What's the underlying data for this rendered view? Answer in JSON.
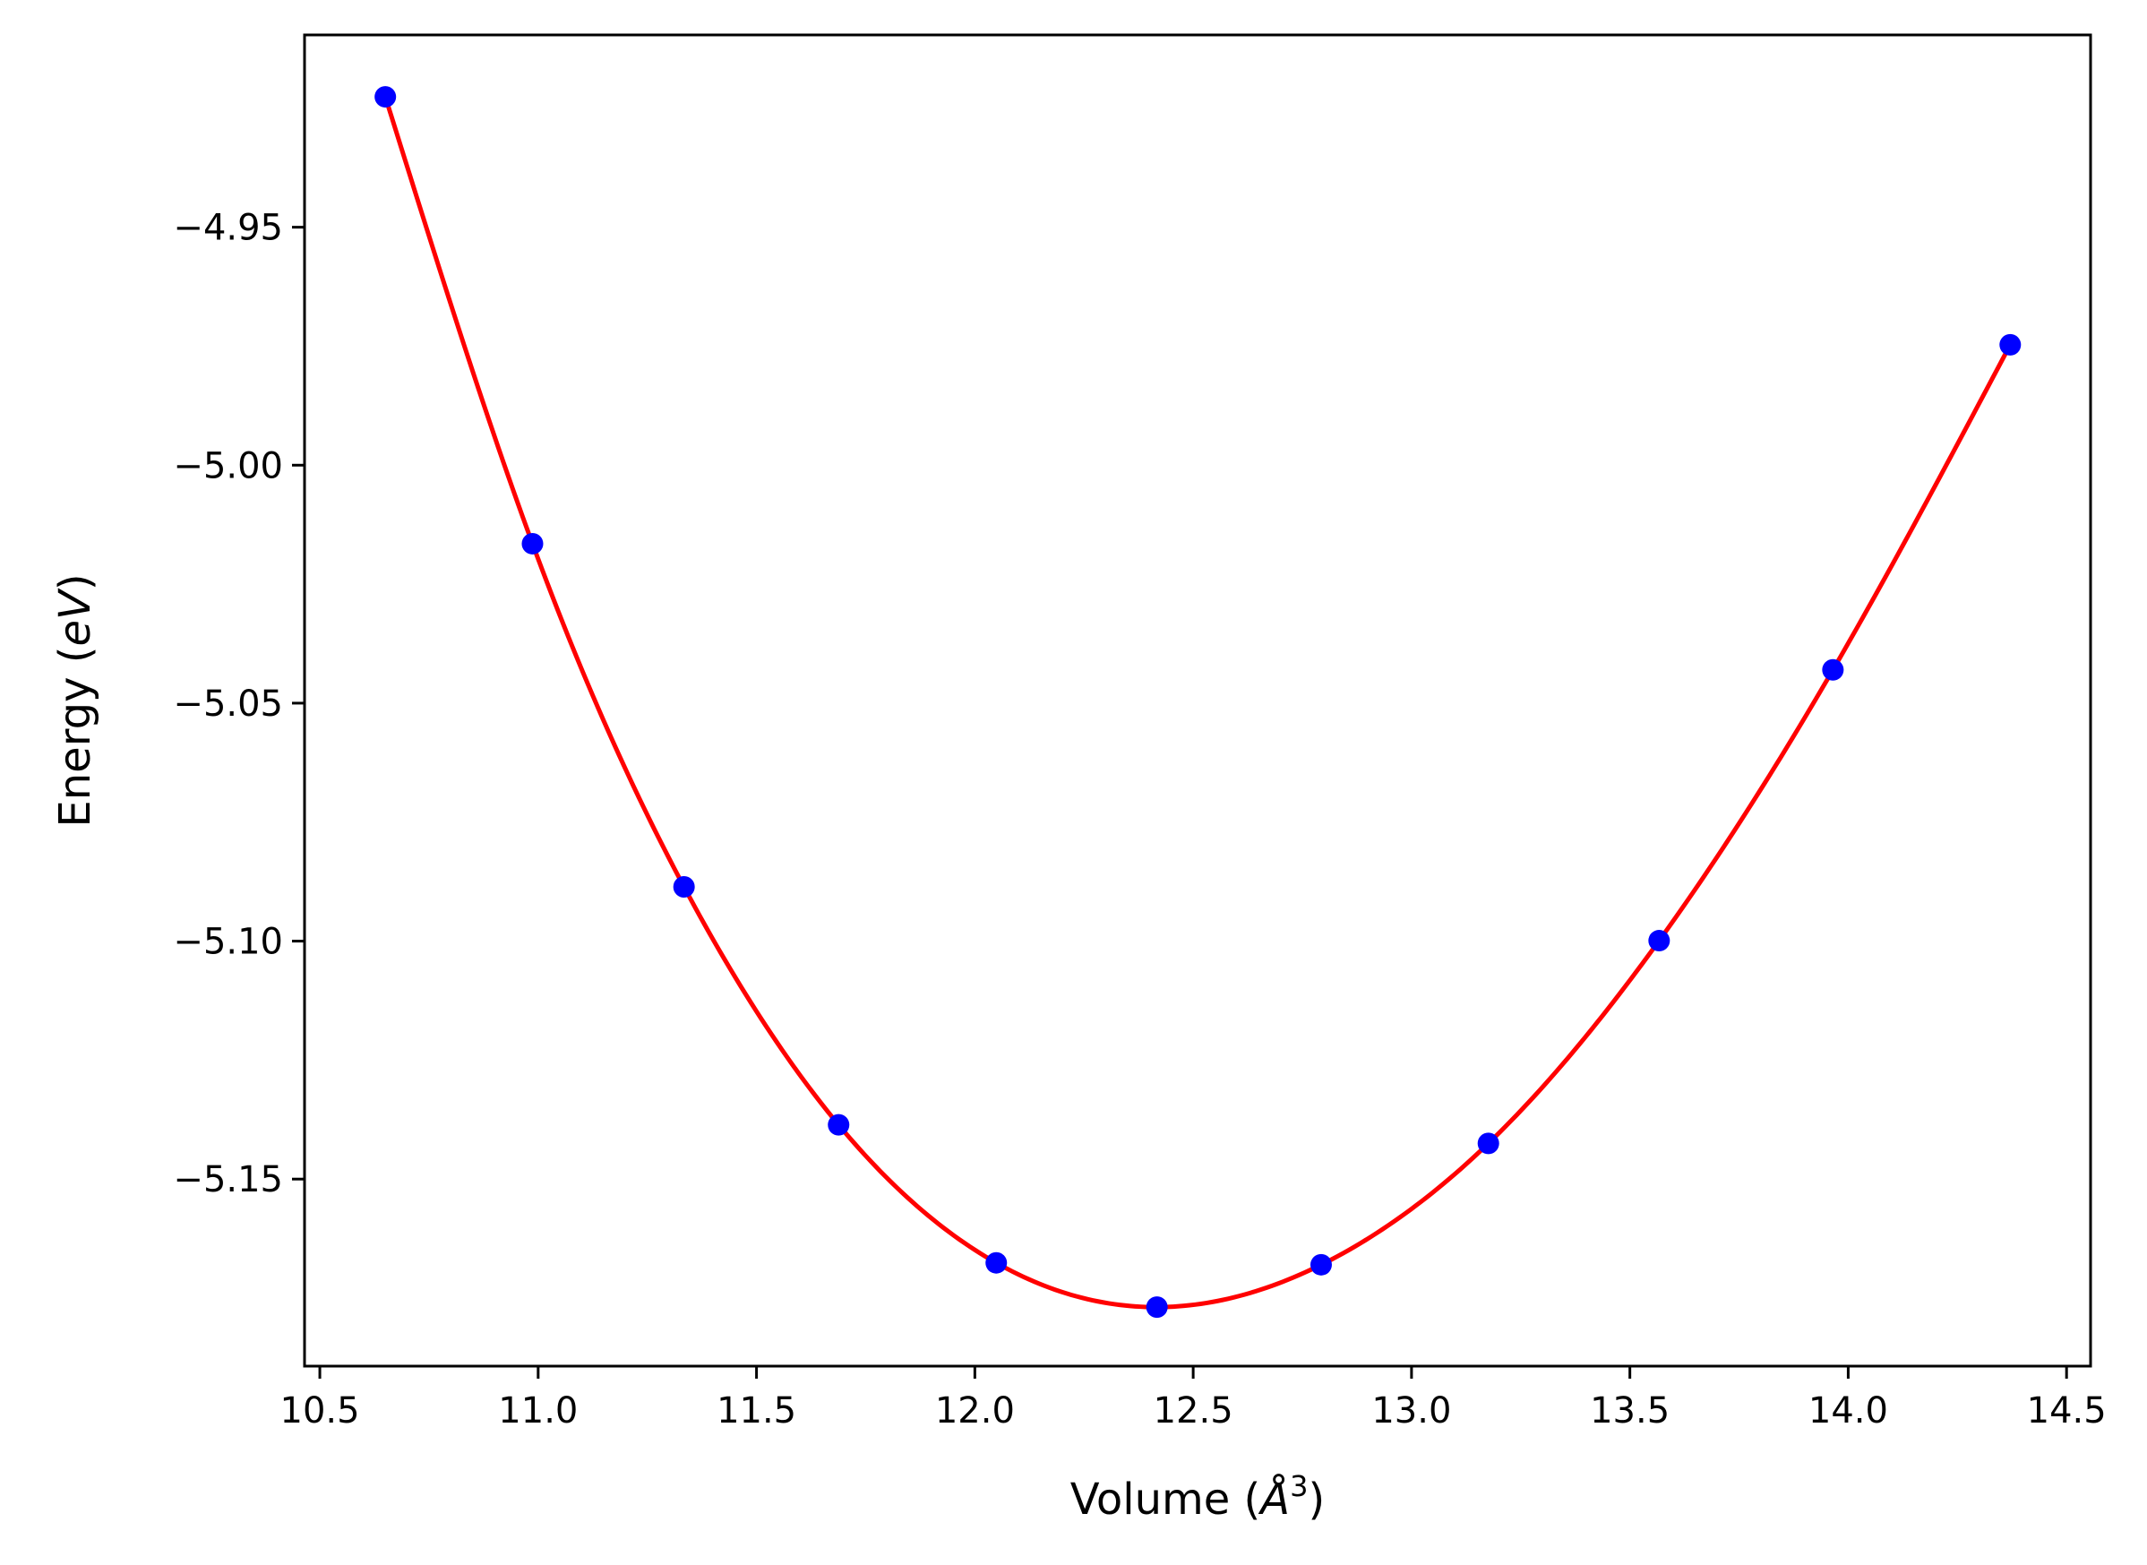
{
  "chart_data": {
    "type": "scatter",
    "title": "",
    "xlabel": {
      "prefix": "Volume (",
      "symbol": "Å",
      "sup": "3",
      "suffix": ")"
    },
    "ylabel": {
      "prefix": "Energy (",
      "symbol": "eV",
      "suffix": ")"
    },
    "xlim": [
      10.465,
      14.555
    ],
    "ylim": [
      -5.1893,
      -4.9096
    ],
    "xticks": [
      10.5,
      11.0,
      11.5,
      12.0,
      12.5,
      13.0,
      13.5,
      14.0,
      14.5
    ],
    "xtick_labels": [
      "10.5",
      "11.0",
      "11.5",
      "12.0",
      "12.5",
      "13.0",
      "13.5",
      "14.0",
      "14.5"
    ],
    "yticks": [
      -4.95,
      -5.0,
      -5.05,
      -5.1,
      -5.15
    ],
    "ytick_labels": [
      "−4.95",
      "−5.00",
      "−5.05",
      "−5.10",
      "−5.15"
    ],
    "grid": false,
    "series": [
      {
        "kind": "points",
        "color": "#0000ff",
        "x": [
          10.65,
          10.987,
          11.334,
          11.688,
          12.049,
          12.417,
          12.793,
          13.176,
          13.567,
          13.965,
          14.371
        ],
        "y": [
          -4.9226,
          -5.0165,
          -5.0886,
          -5.1386,
          -5.1676,
          -5.1769,
          -5.168,
          -5.1425,
          -5.0999,
          -5.043,
          -4.9747
        ]
      },
      {
        "kind": "fit-line",
        "color": "#ff0000",
        "x": [
          10.65,
          10.987,
          11.334,
          11.688,
          12.049,
          12.417,
          12.793,
          13.176,
          13.567,
          13.965,
          14.371
        ],
        "y": [
          -4.9226,
          -5.0165,
          -5.0886,
          -5.1386,
          -5.1676,
          -5.1769,
          -5.168,
          -5.1425,
          -5.0999,
          -5.043,
          -4.9747
        ]
      }
    ]
  }
}
